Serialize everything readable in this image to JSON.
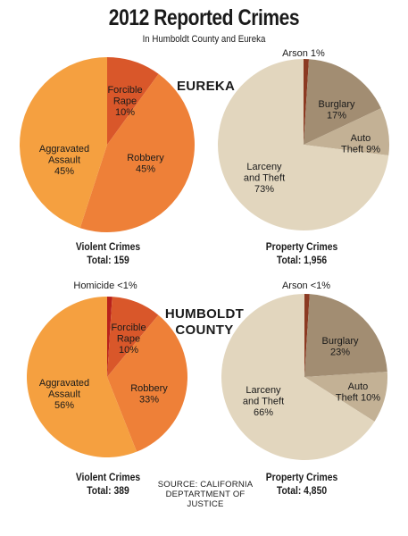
{
  "title": "2012 Reported Crimes",
  "subtitle": "In Humboldt County and Eureka",
  "regions": {
    "eureka": "EUREKA",
    "humboldt": [
      "HUMBOLDT",
      "COUNTY"
    ]
  },
  "source": [
    "SOURCE: CALIFORNIA",
    "DEPTARTMENT OF JUSTICE"
  ],
  "colors": {
    "forcible_rape": "#d9572a",
    "robbery": "#ee8038",
    "aggravated_assault": "#f5a040",
    "homicide": "#b8221c",
    "arson": "#8b3a22",
    "burglary": "#a28d72",
    "auto_theft": "#c3b195",
    "larceny": "#e2d6be"
  },
  "chart_data": [
    {
      "type": "pie",
      "id": "eureka-violent",
      "caption": [
        "Violent Crimes",
        "Total: 159"
      ],
      "slices": [
        {
          "key": "forcible_rape",
          "lines": [
            "Forcible",
            "Rape",
            "10%"
          ],
          "value": 10
        },
        {
          "key": "robbery",
          "lines": [
            "Robbery",
            "45%"
          ],
          "value": 45
        },
        {
          "key": "aggravated_assault",
          "lines": [
            "Aggravated",
            "Assault",
            "45%"
          ],
          "value": 45
        }
      ]
    },
    {
      "type": "pie",
      "id": "eureka-property",
      "caption": [
        "Property Crimes",
        "Total: 1,956"
      ],
      "slices": [
        {
          "key": "arson",
          "lines": [
            "Arson 1%"
          ],
          "value": 1
        },
        {
          "key": "burglary",
          "lines": [
            "Burglary",
            "17%"
          ],
          "value": 17
        },
        {
          "key": "auto_theft",
          "lines": [
            "Auto",
            "Theft 9%"
          ],
          "value": 9
        },
        {
          "key": "larceny",
          "lines": [
            "Larceny",
            "and Theft",
            "73%"
          ],
          "value": 73
        }
      ]
    },
    {
      "type": "pie",
      "id": "humboldt-violent",
      "caption": [
        "Violent Crimes",
        "Total: 389"
      ],
      "slices": [
        {
          "key": "homicide",
          "lines": [
            "Homicide <1%"
          ],
          "value": 1
        },
        {
          "key": "forcible_rape",
          "lines": [
            "Forcible",
            "Rape",
            "10%"
          ],
          "value": 10
        },
        {
          "key": "robbery",
          "lines": [
            "Robbery",
            "33%"
          ],
          "value": 33
        },
        {
          "key": "aggravated_assault",
          "lines": [
            "Aggravated",
            "Assault",
            "56%"
          ],
          "value": 56
        }
      ]
    },
    {
      "type": "pie",
      "id": "humboldt-property",
      "caption": [
        "Property Crimes",
        "Total: 4,850"
      ],
      "slices": [
        {
          "key": "arson",
          "lines": [
            "Arson <1%"
          ],
          "value": 1
        },
        {
          "key": "burglary",
          "lines": [
            "Burglary",
            "23%"
          ],
          "value": 23
        },
        {
          "key": "auto_theft",
          "lines": [
            "Auto",
            "Theft 10%"
          ],
          "value": 10
        },
        {
          "key": "larceny",
          "lines": [
            "Larceny",
            "and Theft",
            "66%"
          ],
          "value": 66
        }
      ]
    }
  ]
}
